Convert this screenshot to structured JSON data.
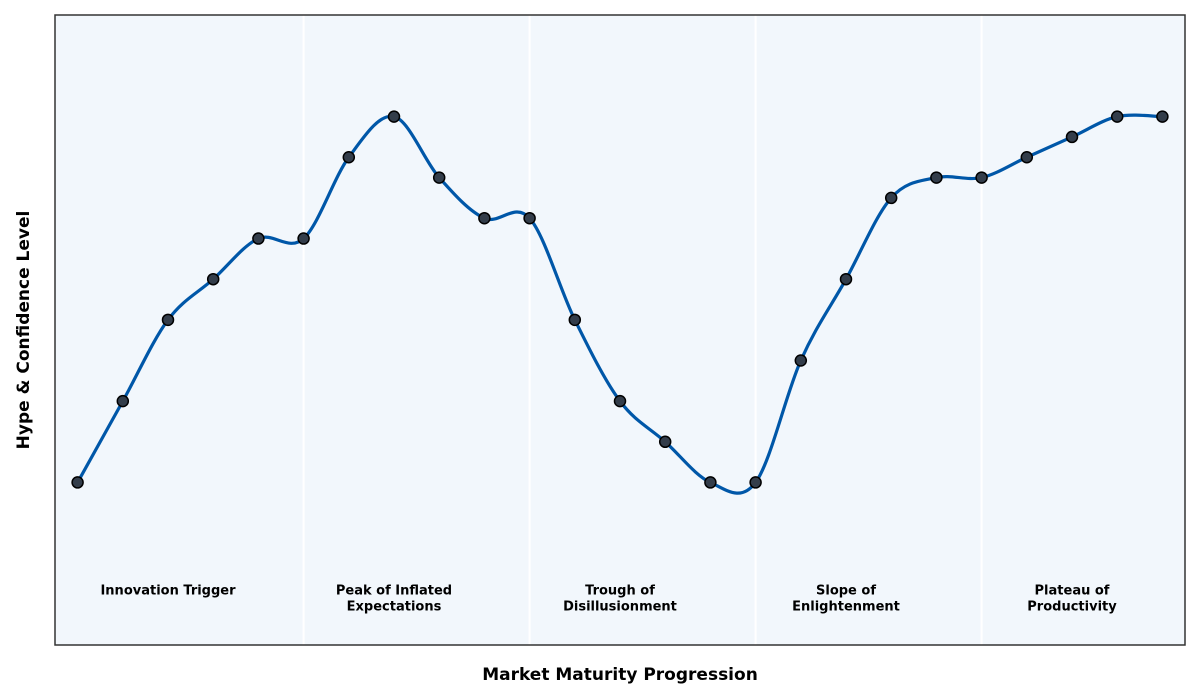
{
  "chart_data": {
    "type": "line",
    "xlabel": "Market Maturity Progression",
    "ylabel": "Hype & Confidence Level",
    "categories": [
      null,
      null,
      null,
      null,
      null,
      null,
      null,
      null,
      null,
      null,
      null,
      null,
      null,
      null,
      null,
      null,
      null,
      null,
      null,
      null,
      null,
      null,
      null,
      null,
      null
    ],
    "values": [
      20,
      40,
      60,
      70,
      80,
      80,
      100,
      110,
      95,
      85,
      85,
      60,
      40,
      30,
      20,
      20,
      50,
      70,
      90,
      95,
      95,
      100,
      105,
      110,
      110
    ],
    "color": "#0057a8",
    "marker_color": "#333d4a",
    "ylim": [
      -20,
      135
    ],
    "phases": [
      {
        "lines": [
          "Innovation Trigger"
        ]
      },
      {
        "lines": [
          "Peak of Inflated",
          "Expectations"
        ]
      },
      {
        "lines": [
          "Trough of",
          "Disillusionment"
        ]
      },
      {
        "lines": [
          "Slope of",
          "Enlightenment"
        ]
      },
      {
        "lines": [
          "Plateau of",
          "Productivity"
        ]
      }
    ]
  }
}
